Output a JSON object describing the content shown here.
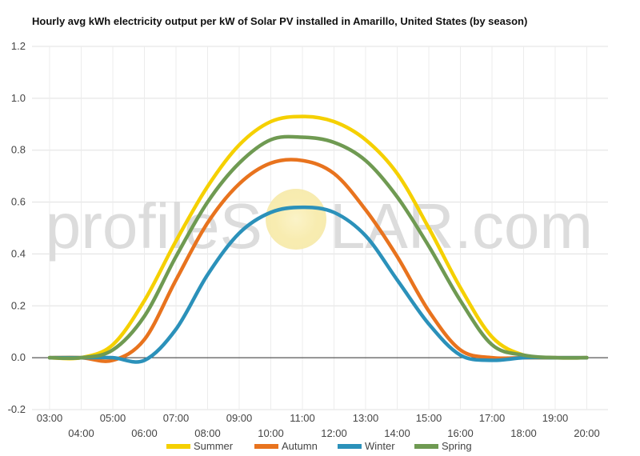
{
  "chart_data": {
    "type": "line",
    "title": "Hourly avg kWh electricity output per kW of Solar PV installed in Amarillo, United States (by season)",
    "watermark": {
      "left": "profileS",
      "right": "LAR.com"
    },
    "x": [
      "03:00",
      "04:00",
      "05:00",
      "06:00",
      "07:00",
      "08:00",
      "09:00",
      "10:00",
      "11:00",
      "12:00",
      "13:00",
      "14:00",
      "15:00",
      "16:00",
      "17:00",
      "18:00",
      "19:00",
      "20:00"
    ],
    "xlim": [
      "03:00",
      "20:00"
    ],
    "ylim": [
      -0.2,
      1.2
    ],
    "yticks": [
      -0.2,
      0.0,
      0.2,
      0.4,
      0.6,
      0.8,
      1.0,
      1.2
    ],
    "ytick_labels": [
      "-0.2",
      "0.0",
      "0.2",
      "0.4",
      "0.6",
      "0.8",
      "1.0",
      "1.2"
    ],
    "grid": true,
    "legend_position": "bottom",
    "series": [
      {
        "name": "Summer",
        "color": "#f5d000",
        "values": [
          0,
          0,
          0.05,
          0.22,
          0.45,
          0.66,
          0.82,
          0.91,
          0.93,
          0.91,
          0.84,
          0.71,
          0.5,
          0.27,
          0.08,
          0.01,
          0,
          0
        ]
      },
      {
        "name": "Autumn",
        "color": "#e8731e",
        "values": [
          0,
          0,
          -0.01,
          0.07,
          0.3,
          0.52,
          0.67,
          0.75,
          0.76,
          0.71,
          0.57,
          0.39,
          0.18,
          0.03,
          0,
          0,
          0,
          0
        ]
      },
      {
        "name": "Winter",
        "color": "#2b91ba",
        "values": [
          0,
          0,
          0,
          -0.01,
          0.11,
          0.32,
          0.48,
          0.56,
          0.58,
          0.56,
          0.47,
          0.3,
          0.13,
          0.01,
          -0.01,
          0,
          0,
          0
        ]
      },
      {
        "name": "Spring",
        "color": "#6f9a52",
        "values": [
          0,
          0,
          0.03,
          0.16,
          0.39,
          0.6,
          0.75,
          0.84,
          0.85,
          0.83,
          0.76,
          0.62,
          0.43,
          0.22,
          0.05,
          0.01,
          0,
          0
        ]
      }
    ]
  }
}
